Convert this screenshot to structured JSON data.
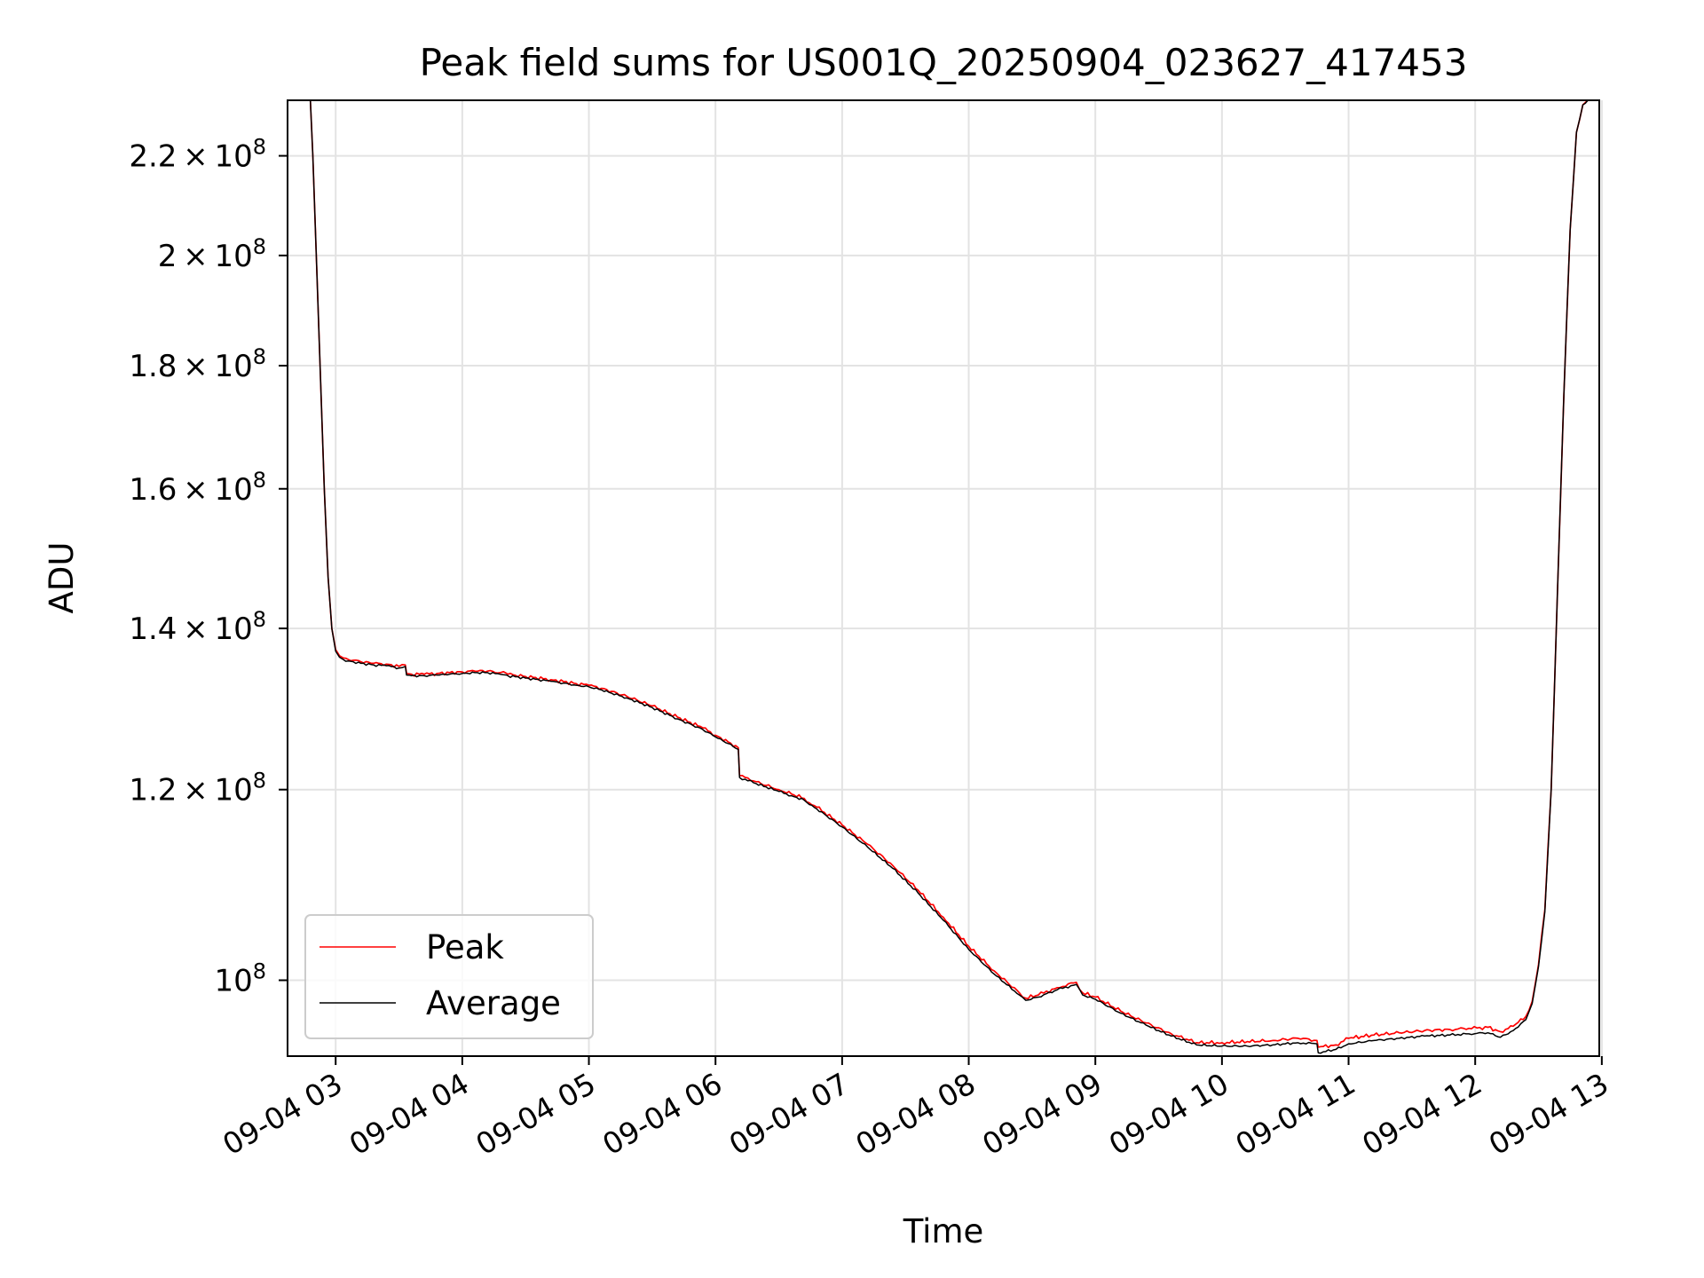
{
  "chart_data": {
    "type": "line",
    "title": "Peak field sums for US001Q_20250904_023627_417453",
    "xlabel": "Time",
    "ylabel": "ADU",
    "y_scale": "log",
    "x_unit": "hour of 2025-09-04",
    "xlim": [
      2.62,
      12.98
    ],
    "ylim": [
      93000000,
      232000000
    ],
    "x_ticks": [
      {
        "value": 3,
        "label": "09-04 03"
      },
      {
        "value": 4,
        "label": "09-04 04"
      },
      {
        "value": 5,
        "label": "09-04 05"
      },
      {
        "value": 6,
        "label": "09-04 06"
      },
      {
        "value": 7,
        "label": "09-04 07"
      },
      {
        "value": 8,
        "label": "09-04 08"
      },
      {
        "value": 9,
        "label": "09-04 09"
      },
      {
        "value": 10,
        "label": "09-04 10"
      },
      {
        "value": 11,
        "label": "09-04 11"
      },
      {
        "value": 12,
        "label": "09-04 12"
      },
      {
        "value": 13,
        "label": "09-04 13"
      }
    ],
    "y_ticks": [
      {
        "value": 100000000,
        "mantissa": "",
        "exponent": "8"
      },
      {
        "value": 120000000,
        "mantissa": "1.2",
        "exponent": "8"
      },
      {
        "value": 140000000,
        "mantissa": "1.4",
        "exponent": "8"
      },
      {
        "value": 160000000,
        "mantissa": "1.6",
        "exponent": "8"
      },
      {
        "value": 180000000,
        "mantissa": "1.8",
        "exponent": "8"
      },
      {
        "value": 200000000,
        "mantissa": "2",
        "exponent": "8"
      },
      {
        "value": 220000000,
        "mantissa": "2.2",
        "exponent": "8"
      }
    ],
    "grid": true,
    "legend_position": "bottom-left",
    "series": [
      {
        "name": "Peak",
        "color": "#ff0000",
        "x": [
          2.8,
          2.82,
          2.85,
          2.88,
          2.91,
          2.94,
          2.97,
          3.0,
          3.03,
          3.06,
          3.1,
          3.14,
          3.2,
          3.3,
          3.4,
          3.5,
          3.55,
          3.56,
          3.6,
          3.7,
          3.8,
          3.9,
          4.0,
          4.1,
          4.2,
          4.3,
          4.35,
          4.36,
          4.5,
          4.7,
          4.9,
          5.0,
          5.1,
          5.3,
          5.5,
          5.7,
          5.9,
          6.0,
          6.1,
          6.18,
          6.19,
          6.3,
          6.5,
          6.6,
          6.7,
          6.74,
          6.8,
          7.0,
          7.2,
          7.4,
          7.6,
          7.8,
          8.0,
          8.2,
          8.4,
          8.45,
          8.55,
          8.7,
          8.85,
          8.9,
          9.0,
          9.2,
          9.4,
          9.6,
          9.8,
          10.0,
          10.2,
          10.4,
          10.6,
          10.75,
          10.76,
          10.9,
          11.0,
          11.2,
          11.4,
          11.6,
          11.8,
          11.95,
          12.1,
          12.2,
          12.3,
          12.4,
          12.45,
          12.5,
          12.55,
          12.6,
          12.65,
          12.7,
          12.75,
          12.8,
          12.85,
          12.89
        ],
        "values": [
          232000000,
          220000000,
          198000000,
          178000000,
          160000000,
          147000000,
          140000000,
          137200000,
          136400000,
          136100000,
          135900000,
          135800000,
          135600000,
          135400000,
          135300000,
          135000000,
          135200000,
          134100000,
          134000000,
          134000000,
          134100000,
          134200000,
          134300000,
          134400000,
          134400000,
          134200000,
          134100000,
          134000000,
          133700000,
          133300000,
          132800000,
          132600000,
          132200000,
          131200000,
          130000000,
          128600000,
          127300000,
          126400000,
          125600000,
          124900000,
          121600000,
          121000000,
          120000000,
          119500000,
          119000000,
          118500000,
          118000000,
          116000000,
          113900000,
          111600000,
          109000000,
          106200000,
          103300000,
          100900000,
          98800000,
          98300000,
          98600000,
          99300000,
          99800000,
          98800000,
          98400000,
          97100000,
          96000000,
          95000000,
          94200000,
          94200000,
          94300000,
          94400000,
          94600000,
          94400000,
          93800000,
          94000000,
          94600000,
          94900000,
          95100000,
          95300000,
          95400000,
          95500000,
          95600000,
          95200000,
          95700000,
          96600000,
          98000000,
          101500000,
          107000000,
          120000000,
          145000000,
          175000000,
          205000000,
          225000000,
          231000000,
          232000000
        ]
      },
      {
        "name": "Average",
        "color": "#000000",
        "x": [
          2.8,
          2.82,
          2.85,
          2.88,
          2.91,
          2.94,
          2.97,
          3.0,
          3.03,
          3.06,
          3.1,
          3.14,
          3.2,
          3.3,
          3.4,
          3.5,
          3.55,
          3.56,
          3.6,
          3.7,
          3.8,
          3.9,
          4.0,
          4.1,
          4.2,
          4.3,
          4.35,
          4.36,
          4.5,
          4.7,
          4.9,
          5.0,
          5.1,
          5.3,
          5.5,
          5.7,
          5.9,
          6.0,
          6.1,
          6.18,
          6.19,
          6.3,
          6.5,
          6.6,
          6.7,
          6.74,
          6.8,
          7.0,
          7.2,
          7.4,
          7.6,
          7.8,
          8.0,
          8.2,
          8.4,
          8.45,
          8.55,
          8.7,
          8.85,
          8.9,
          9.0,
          9.2,
          9.4,
          9.6,
          9.8,
          10.0,
          10.2,
          10.4,
          10.6,
          10.75,
          10.76,
          10.9,
          11.0,
          11.2,
          11.4,
          11.6,
          11.8,
          11.95,
          12.1,
          12.2,
          12.3,
          12.4,
          12.45,
          12.5,
          12.55,
          12.6,
          12.65,
          12.7,
          12.75,
          12.8,
          12.85,
          12.89
        ],
        "values": [
          232000000,
          220000000,
          198000000,
          178000000,
          160000000,
          147000000,
          140000000,
          137000000,
          136200000,
          135900000,
          135700000,
          135600000,
          135400000,
          135200000,
          135100000,
          134800000,
          135000000,
          133900000,
          133800000,
          133800000,
          133900000,
          134000000,
          134100000,
          134200000,
          134200000,
          134000000,
          133900000,
          133800000,
          133500000,
          133100000,
          132600000,
          132400000,
          132000000,
          131000000,
          129800000,
          128400000,
          127100000,
          126200000,
          125400000,
          124700000,
          121400000,
          120800000,
          119800000,
          119300000,
          118800000,
          118300000,
          117800000,
          115800000,
          113600000,
          111300000,
          108700000,
          105900000,
          103000000,
          100600000,
          98600000,
          98100000,
          98400000,
          99100000,
          99600000,
          98600000,
          98200000,
          96900000,
          95800000,
          94800000,
          94000000,
          93900000,
          93900000,
          94000000,
          94200000,
          94100000,
          93300000,
          93600000,
          94100000,
          94400000,
          94600000,
          94800000,
          94900000,
          95000000,
          95100000,
          94700000,
          95300000,
          96300000,
          97800000,
          101300000,
          106800000,
          120000000,
          145000000,
          175000000,
          205000000,
          225000000,
          231000000,
          232000000
        ]
      }
    ]
  }
}
